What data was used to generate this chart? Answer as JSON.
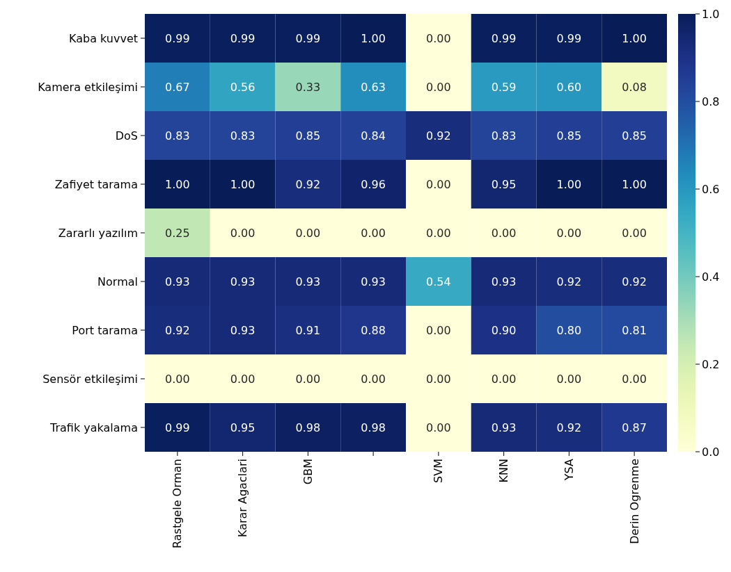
{
  "chart_data": {
    "type": "heatmap",
    "categories": [
      "Rastgele Orman",
      "Karar Agaclari",
      "GBM",
      null,
      "SVM",
      "KNN",
      "YSA",
      "Derin Ogrenme"
    ],
    "y_categories": [
      "Kaba kuvvet",
      "Kamera etkileşimi",
      "DoS",
      "Zafiyet tarama",
      "Zararlı yazılım",
      "Normal",
      "Port tarama",
      "Sensör etkileşimi",
      "Trafik yakalama"
    ],
    "cells": [
      [
        0.99,
        0.99,
        0.99,
        1.0,
        0.0,
        0.99,
        0.99,
        1.0
      ],
      [
        0.67,
        0.56,
        0.33,
        0.63,
        0.0,
        0.59,
        0.6,
        0.08
      ],
      [
        0.83,
        0.83,
        0.85,
        0.84,
        0.92,
        0.83,
        0.85,
        0.85
      ],
      [
        1.0,
        1.0,
        0.92,
        0.96,
        0.0,
        0.95,
        1.0,
        1.0
      ],
      [
        0.25,
        0.0,
        0.0,
        0.0,
        0.0,
        0.0,
        0.0,
        0.0
      ],
      [
        0.93,
        0.93,
        0.93,
        0.93,
        0.54,
        0.93,
        0.92,
        0.92
      ],
      [
        0.92,
        0.93,
        0.91,
        0.88,
        0.0,
        0.9,
        0.8,
        0.81
      ],
      [
        0.0,
        0.0,
        0.0,
        0.0,
        0.0,
        0.0,
        0.0,
        0.0
      ],
      [
        0.99,
        0.95,
        0.98,
        0.98,
        0.0,
        0.93,
        0.92,
        0.87
      ]
    ],
    "cell_labels": [
      [
        "0.99",
        "0.99",
        "0.99",
        "1.00",
        "0.00",
        "0.99",
        "0.99",
        "1.00"
      ],
      [
        "0.67",
        "0.56",
        "0.33",
        "0.63",
        "0.00",
        "0.59",
        "0.60",
        "0.08"
      ],
      [
        "0.83",
        "0.83",
        "0.85",
        "0.84",
        "0.92",
        "0.83",
        "0.85",
        "0.85"
      ],
      [
        "1.00",
        "1.00",
        "0.92",
        "0.96",
        "0.00",
        "0.95",
        "1.00",
        "1.00"
      ],
      [
        "0.25",
        "0.00",
        "0.00",
        "0.00",
        "0.00",
        "0.00",
        "0.00",
        "0.00"
      ],
      [
        "0.93",
        "0.93",
        "0.93",
        "0.93",
        "0.54",
        "0.93",
        "0.92",
        "0.92"
      ],
      [
        "0.92",
        "0.93",
        "0.91",
        "0.88",
        "0.00",
        "0.90",
        "0.80",
        "0.81"
      ],
      [
        "0.00",
        "0.00",
        "0.00",
        "0.00",
        "0.00",
        "0.00",
        "0.00",
        "0.00"
      ],
      [
        "0.99",
        "0.95",
        "0.98",
        "0.98",
        "0.00",
        "0.93",
        "0.92",
        "0.87"
      ]
    ],
    "clim": [
      0,
      1
    ],
    "cticks": [
      {
        "value": 0,
        "label": "0.0"
      },
      {
        "value": 0.2,
        "label": "0.2"
      },
      {
        "value": 0.4,
        "label": "0.4"
      },
      {
        "value": 0.6,
        "label": "0.6"
      },
      {
        "value": 0.8,
        "label": "0.8"
      },
      {
        "value": 1,
        "label": "1.0"
      }
    ]
  }
}
